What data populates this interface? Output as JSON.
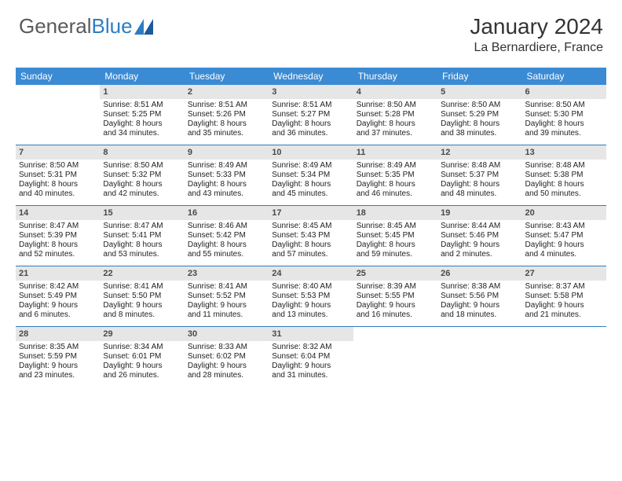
{
  "logo": {
    "text1": "General",
    "text2": "Blue"
  },
  "title": "January 2024",
  "location": "La Bernardiere, France",
  "colors": {
    "header_bg": "#3b8bd4",
    "header_text": "#ffffff",
    "daynum_bg": "#e6e6e6",
    "border": "#2d7dc4",
    "logo_gray": "#5a5a5a",
    "logo_blue": "#2d7dc4"
  },
  "day_labels": [
    "Sunday",
    "Monday",
    "Tuesday",
    "Wednesday",
    "Thursday",
    "Friday",
    "Saturday"
  ],
  "weeks": [
    [
      null,
      {
        "n": "1",
        "sr": "Sunrise: 8:51 AM",
        "ss": "Sunset: 5:25 PM",
        "d1": "Daylight: 8 hours",
        "d2": "and 34 minutes."
      },
      {
        "n": "2",
        "sr": "Sunrise: 8:51 AM",
        "ss": "Sunset: 5:26 PM",
        "d1": "Daylight: 8 hours",
        "d2": "and 35 minutes."
      },
      {
        "n": "3",
        "sr": "Sunrise: 8:51 AM",
        "ss": "Sunset: 5:27 PM",
        "d1": "Daylight: 8 hours",
        "d2": "and 36 minutes."
      },
      {
        "n": "4",
        "sr": "Sunrise: 8:50 AM",
        "ss": "Sunset: 5:28 PM",
        "d1": "Daylight: 8 hours",
        "d2": "and 37 minutes."
      },
      {
        "n": "5",
        "sr": "Sunrise: 8:50 AM",
        "ss": "Sunset: 5:29 PM",
        "d1": "Daylight: 8 hours",
        "d2": "and 38 minutes."
      },
      {
        "n": "6",
        "sr": "Sunrise: 8:50 AM",
        "ss": "Sunset: 5:30 PM",
        "d1": "Daylight: 8 hours",
        "d2": "and 39 minutes."
      }
    ],
    [
      {
        "n": "7",
        "sr": "Sunrise: 8:50 AM",
        "ss": "Sunset: 5:31 PM",
        "d1": "Daylight: 8 hours",
        "d2": "and 40 minutes."
      },
      {
        "n": "8",
        "sr": "Sunrise: 8:50 AM",
        "ss": "Sunset: 5:32 PM",
        "d1": "Daylight: 8 hours",
        "d2": "and 42 minutes."
      },
      {
        "n": "9",
        "sr": "Sunrise: 8:49 AM",
        "ss": "Sunset: 5:33 PM",
        "d1": "Daylight: 8 hours",
        "d2": "and 43 minutes."
      },
      {
        "n": "10",
        "sr": "Sunrise: 8:49 AM",
        "ss": "Sunset: 5:34 PM",
        "d1": "Daylight: 8 hours",
        "d2": "and 45 minutes."
      },
      {
        "n": "11",
        "sr": "Sunrise: 8:49 AM",
        "ss": "Sunset: 5:35 PM",
        "d1": "Daylight: 8 hours",
        "d2": "and 46 minutes."
      },
      {
        "n": "12",
        "sr": "Sunrise: 8:48 AM",
        "ss": "Sunset: 5:37 PM",
        "d1": "Daylight: 8 hours",
        "d2": "and 48 minutes."
      },
      {
        "n": "13",
        "sr": "Sunrise: 8:48 AM",
        "ss": "Sunset: 5:38 PM",
        "d1": "Daylight: 8 hours",
        "d2": "and 50 minutes."
      }
    ],
    [
      {
        "n": "14",
        "sr": "Sunrise: 8:47 AM",
        "ss": "Sunset: 5:39 PM",
        "d1": "Daylight: 8 hours",
        "d2": "and 52 minutes."
      },
      {
        "n": "15",
        "sr": "Sunrise: 8:47 AM",
        "ss": "Sunset: 5:41 PM",
        "d1": "Daylight: 8 hours",
        "d2": "and 53 minutes."
      },
      {
        "n": "16",
        "sr": "Sunrise: 8:46 AM",
        "ss": "Sunset: 5:42 PM",
        "d1": "Daylight: 8 hours",
        "d2": "and 55 minutes."
      },
      {
        "n": "17",
        "sr": "Sunrise: 8:45 AM",
        "ss": "Sunset: 5:43 PM",
        "d1": "Daylight: 8 hours",
        "d2": "and 57 minutes."
      },
      {
        "n": "18",
        "sr": "Sunrise: 8:45 AM",
        "ss": "Sunset: 5:45 PM",
        "d1": "Daylight: 8 hours",
        "d2": "and 59 minutes."
      },
      {
        "n": "19",
        "sr": "Sunrise: 8:44 AM",
        "ss": "Sunset: 5:46 PM",
        "d1": "Daylight: 9 hours",
        "d2": "and 2 minutes."
      },
      {
        "n": "20",
        "sr": "Sunrise: 8:43 AM",
        "ss": "Sunset: 5:47 PM",
        "d1": "Daylight: 9 hours",
        "d2": "and 4 minutes."
      }
    ],
    [
      {
        "n": "21",
        "sr": "Sunrise: 8:42 AM",
        "ss": "Sunset: 5:49 PM",
        "d1": "Daylight: 9 hours",
        "d2": "and 6 minutes."
      },
      {
        "n": "22",
        "sr": "Sunrise: 8:41 AM",
        "ss": "Sunset: 5:50 PM",
        "d1": "Daylight: 9 hours",
        "d2": "and 8 minutes."
      },
      {
        "n": "23",
        "sr": "Sunrise: 8:41 AM",
        "ss": "Sunset: 5:52 PM",
        "d1": "Daylight: 9 hours",
        "d2": "and 11 minutes."
      },
      {
        "n": "24",
        "sr": "Sunrise: 8:40 AM",
        "ss": "Sunset: 5:53 PM",
        "d1": "Daylight: 9 hours",
        "d2": "and 13 minutes."
      },
      {
        "n": "25",
        "sr": "Sunrise: 8:39 AM",
        "ss": "Sunset: 5:55 PM",
        "d1": "Daylight: 9 hours",
        "d2": "and 16 minutes."
      },
      {
        "n": "26",
        "sr": "Sunrise: 8:38 AM",
        "ss": "Sunset: 5:56 PM",
        "d1": "Daylight: 9 hours",
        "d2": "and 18 minutes."
      },
      {
        "n": "27",
        "sr": "Sunrise: 8:37 AM",
        "ss": "Sunset: 5:58 PM",
        "d1": "Daylight: 9 hours",
        "d2": "and 21 minutes."
      }
    ],
    [
      {
        "n": "28",
        "sr": "Sunrise: 8:35 AM",
        "ss": "Sunset: 5:59 PM",
        "d1": "Daylight: 9 hours",
        "d2": "and 23 minutes."
      },
      {
        "n": "29",
        "sr": "Sunrise: 8:34 AM",
        "ss": "Sunset: 6:01 PM",
        "d1": "Daylight: 9 hours",
        "d2": "and 26 minutes."
      },
      {
        "n": "30",
        "sr": "Sunrise: 8:33 AM",
        "ss": "Sunset: 6:02 PM",
        "d1": "Daylight: 9 hours",
        "d2": "and 28 minutes."
      },
      {
        "n": "31",
        "sr": "Sunrise: 8:32 AM",
        "ss": "Sunset: 6:04 PM",
        "d1": "Daylight: 9 hours",
        "d2": "and 31 minutes."
      },
      null,
      null,
      null
    ]
  ]
}
